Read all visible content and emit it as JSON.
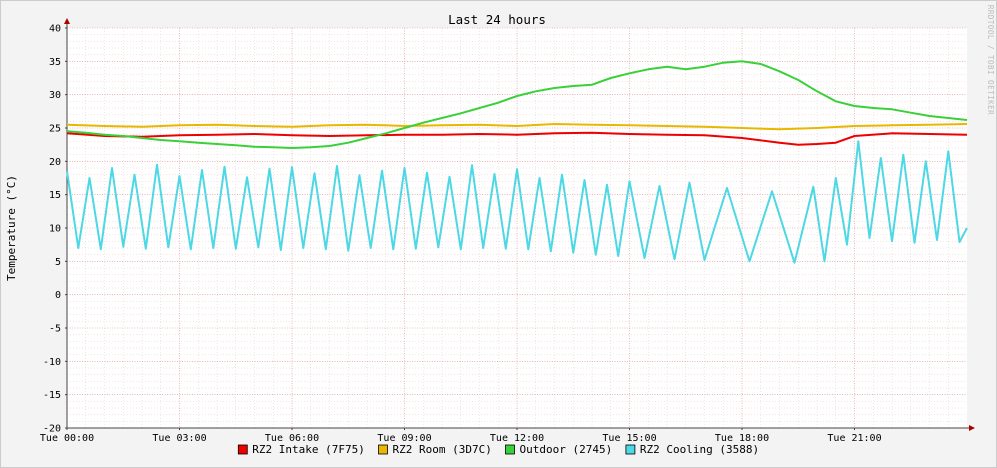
{
  "chart_data": {
    "type": "line",
    "title": "Last 24 hours",
    "ylabel": "Temperature (°C)",
    "xlabel": "",
    "watermark": "RRDTOOL / TOBI OETIKER",
    "ylim": [
      -20,
      40
    ],
    "yticks": [
      -20,
      -15,
      -10,
      -5,
      0,
      5,
      10,
      15,
      20,
      25,
      30,
      35,
      40
    ],
    "x_range_hours": [
      0,
      24
    ],
    "xticks": [
      {
        "hour": 0,
        "label": "Tue 00:00"
      },
      {
        "hour": 3,
        "label": "Tue 03:00"
      },
      {
        "hour": 6,
        "label": "Tue 06:00"
      },
      {
        "hour": 9,
        "label": "Tue 09:00"
      },
      {
        "hour": 12,
        "label": "Tue 12:00"
      },
      {
        "hour": 15,
        "label": "Tue 15:00"
      },
      {
        "hour": 18,
        "label": "Tue 18:00"
      },
      {
        "hour": 21,
        "label": "Tue 21:00"
      }
    ],
    "grid": true,
    "legend_position": "bottom",
    "series": [
      {
        "name": "RZ2 Intake (7F75)",
        "color": "#ee0000",
        "x": [
          0,
          1,
          2,
          3,
          4,
          5,
          6,
          7,
          8,
          9,
          10,
          11,
          12,
          13,
          14,
          15,
          16,
          17,
          18,
          19,
          19.5,
          20,
          20.5,
          21,
          22,
          23,
          24
        ],
        "y": [
          24.2,
          23.8,
          23.7,
          23.9,
          24.0,
          24.1,
          23.9,
          23.8,
          23.9,
          24.0,
          24.0,
          24.1,
          24.0,
          24.2,
          24.3,
          24.1,
          24.0,
          23.9,
          23.5,
          22.8,
          22.5,
          22.6,
          22.8,
          23.8,
          24.2,
          24.1,
          24.0
        ]
      },
      {
        "name": "RZ2 Room (3D7C)",
        "color": "#e8b800",
        "x": [
          0,
          1,
          2,
          3,
          4,
          5,
          6,
          7,
          8,
          9,
          10,
          11,
          12,
          13,
          14,
          15,
          16,
          17,
          18,
          19,
          20,
          21,
          22,
          23,
          24
        ],
        "y": [
          25.5,
          25.3,
          25.2,
          25.4,
          25.5,
          25.3,
          25.2,
          25.4,
          25.5,
          25.3,
          25.4,
          25.5,
          25.3,
          25.6,
          25.5,
          25.4,
          25.3,
          25.2,
          25.0,
          24.8,
          25.0,
          25.3,
          25.4,
          25.5,
          25.6
        ]
      },
      {
        "name": "Outdoor (2745)",
        "color": "#3ad03a",
        "x": [
          0,
          0.5,
          1,
          1.5,
          2,
          2.5,
          3,
          3.5,
          4,
          4.5,
          5,
          5.5,
          6,
          6.5,
          7,
          7.5,
          8,
          8.5,
          9,
          9.5,
          10,
          10.5,
          11,
          11.5,
          12,
          12.5,
          13,
          13.5,
          14,
          14.5,
          15,
          15.5,
          16,
          16.5,
          17,
          17.5,
          18,
          18.5,
          19,
          19.5,
          20,
          20.5,
          21,
          21.5,
          22,
          22.5,
          23,
          23.5,
          24
        ],
        "y": [
          24.5,
          24.3,
          24.0,
          23.8,
          23.5,
          23.2,
          23.0,
          22.8,
          22.6,
          22.4,
          22.2,
          22.1,
          22.0,
          22.1,
          22.3,
          22.8,
          23.5,
          24.2,
          25.0,
          25.8,
          26.5,
          27.2,
          28.0,
          28.8,
          29.8,
          30.5,
          31.0,
          31.3,
          31.5,
          32.5,
          33.2,
          33.8,
          34.2,
          33.8,
          34.2,
          34.8,
          35.0,
          34.6,
          33.5,
          32.2,
          30.5,
          29.0,
          28.3,
          28.0,
          27.8,
          27.3,
          26.8,
          26.5,
          26.2
        ]
      },
      {
        "name": "RZ2 Cooling (3588)",
        "color": "#4cd8e4",
        "x": [
          0,
          0.3,
          0.6,
          0.9,
          1.2,
          1.5,
          1.8,
          2.1,
          2.4,
          2.7,
          3.0,
          3.3,
          3.6,
          3.9,
          4.2,
          4.5,
          4.8,
          5.1,
          5.4,
          5.7,
          6.0,
          6.3,
          6.6,
          6.9,
          7.2,
          7.5,
          7.8,
          8.1,
          8.4,
          8.7,
          9.0,
          9.3,
          9.6,
          9.9,
          10.2,
          10.5,
          10.8,
          11.1,
          11.4,
          11.7,
          12.0,
          12.3,
          12.6,
          12.9,
          13.2,
          13.5,
          13.8,
          14.1,
          14.4,
          14.7,
          15.0,
          15.4,
          15.8,
          16.2,
          16.6,
          17.0,
          17.6,
          18.2,
          18.8,
          19.4,
          19.9,
          20.2,
          20.5,
          20.8,
          21.1,
          21.4,
          21.7,
          22.0,
          22.3,
          22.6,
          22.9,
          23.2,
          23.5,
          23.8,
          24.0
        ],
        "y": [
          18.5,
          7.0,
          17.5,
          6.8,
          19.0,
          7.2,
          18.0,
          6.9,
          19.5,
          7.1,
          17.8,
          6.8,
          18.7,
          7.0,
          19.2,
          6.9,
          17.6,
          7.1,
          18.9,
          6.7,
          19.1,
          7.0,
          18.2,
          6.8,
          19.3,
          6.6,
          17.9,
          7.0,
          18.6,
          6.8,
          19.0,
          6.9,
          18.3,
          7.1,
          17.7,
          6.8,
          19.4,
          7.0,
          18.1,
          6.9,
          18.8,
          6.8,
          17.5,
          6.5,
          18.0,
          6.3,
          17.2,
          6.0,
          16.5,
          5.8,
          17.0,
          5.5,
          16.3,
          5.3,
          16.8,
          5.2,
          16.0,
          5.0,
          15.5,
          4.8,
          16.2,
          5.0,
          17.5,
          7.5,
          23.0,
          8.5,
          20.5,
          8.0,
          21.0,
          7.8,
          20.0,
          8.2,
          21.5,
          7.9,
          10.0
        ]
      }
    ]
  }
}
